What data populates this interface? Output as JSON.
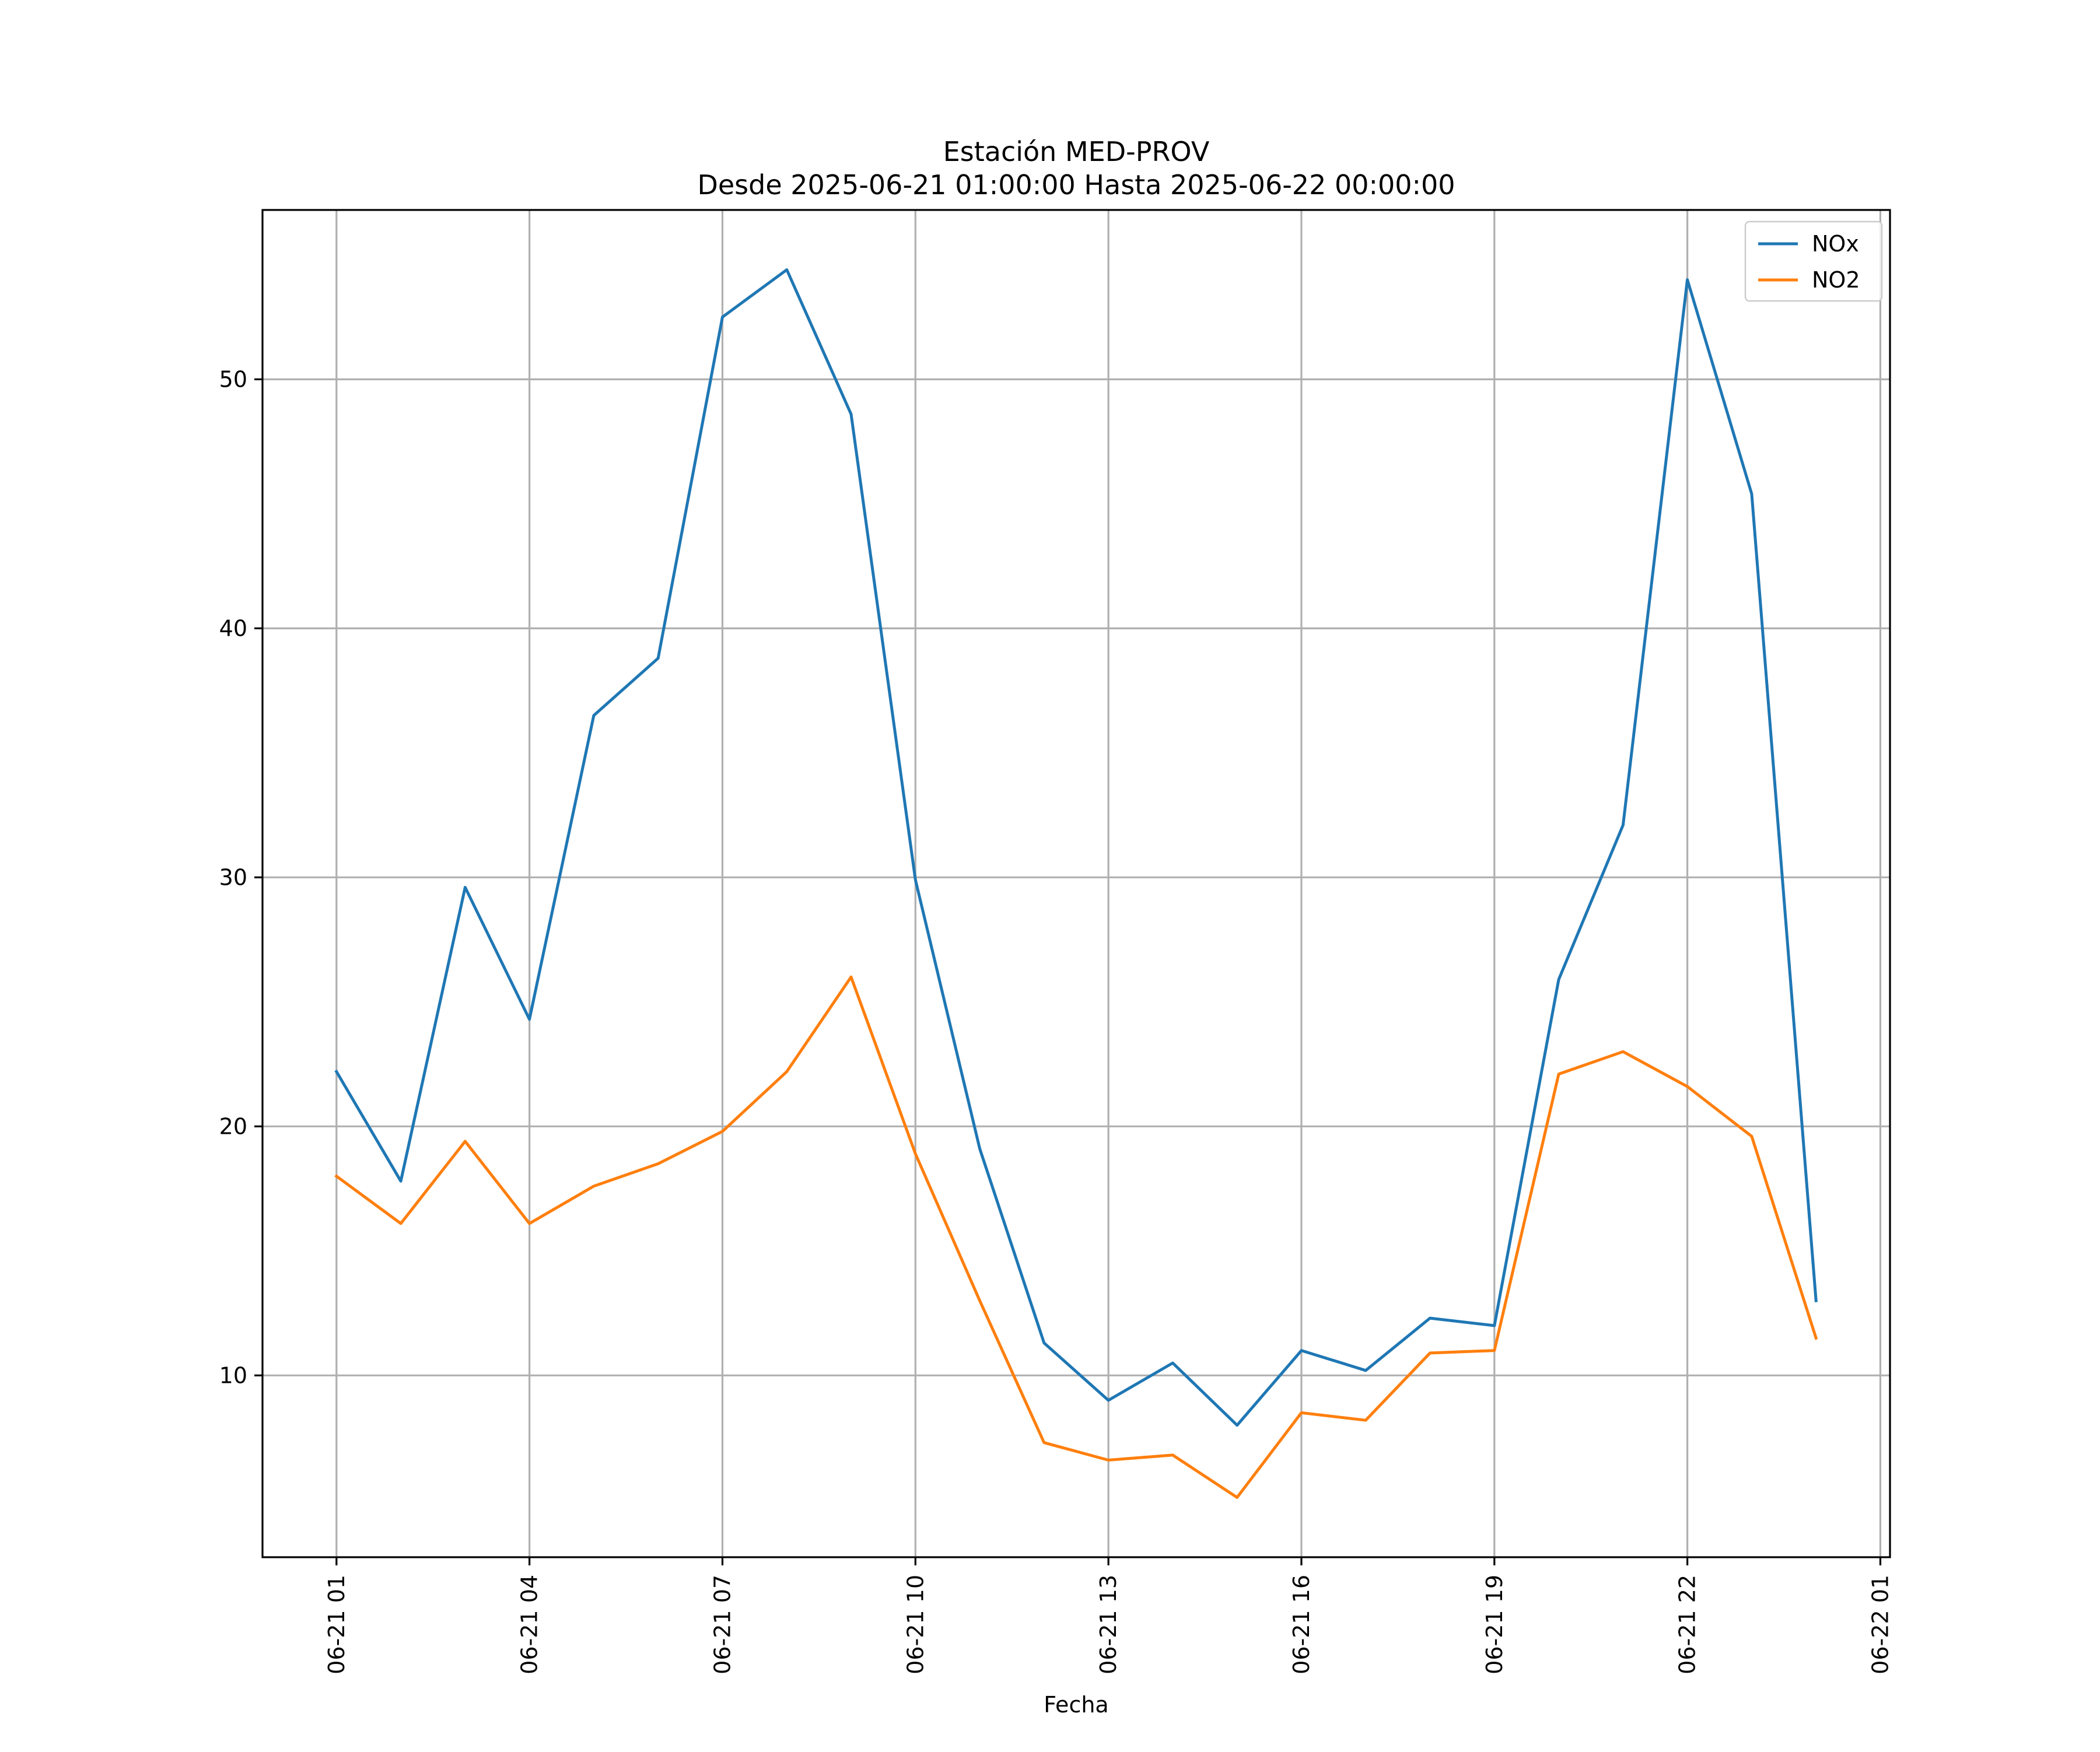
{
  "chart_data": {
    "type": "line",
    "title": "Estación MED-PROV",
    "subtitle": "Desde 2025-06-21 01:00:00 Hasta 2025-06-22 00:00:00",
    "xlabel": "Fecha",
    "ylabel": "",
    "grid": true,
    "legend_position": "top-right",
    "x": [
      "2025-06-21 01:00",
      "2025-06-21 02:00",
      "2025-06-21 03:00",
      "2025-06-21 04:00",
      "2025-06-21 05:00",
      "2025-06-21 06:00",
      "2025-06-21 07:00",
      "2025-06-21 08:00",
      "2025-06-21 09:00",
      "2025-06-21 10:00",
      "2025-06-21 11:00",
      "2025-06-21 12:00",
      "2025-06-21 13:00",
      "2025-06-21 14:00",
      "2025-06-21 15:00",
      "2025-06-21 16:00",
      "2025-06-21 17:00",
      "2025-06-21 18:00",
      "2025-06-21 19:00",
      "2025-06-21 20:00",
      "2025-06-21 21:00",
      "2025-06-21 22:00",
      "2025-06-21 23:00",
      "2025-06-22 00:00"
    ],
    "x_ticks": [
      {
        "label": "06-21 01",
        "value": "2025-06-21 01:00"
      },
      {
        "label": "06-21 04",
        "value": "2025-06-21 04:00"
      },
      {
        "label": "06-21 07",
        "value": "2025-06-21 07:00"
      },
      {
        "label": "06-21 10",
        "value": "2025-06-21 10:00"
      },
      {
        "label": "06-21 13",
        "value": "2025-06-21 13:00"
      },
      {
        "label": "06-21 16",
        "value": "2025-06-21 16:00"
      },
      {
        "label": "06-21 19",
        "value": "2025-06-21 19:00"
      },
      {
        "label": "06-21 22",
        "value": "2025-06-21 22:00"
      },
      {
        "label": "06-22 01",
        "value": "2025-06-22 01:00"
      }
    ],
    "xlim": [
      "2025-06-20 23:51",
      "2025-06-22 01:09"
    ],
    "y_ticks": [
      10,
      20,
      30,
      40,
      50
    ],
    "ylim": [
      2.7,
      56.8
    ],
    "series": [
      {
        "name": "NOx",
        "color": "#1f77b4",
        "values": [
          22.2,
          17.8,
          29.6,
          24.3,
          36.5,
          38.8,
          52.5,
          54.4,
          48.6,
          29.9,
          19.1,
          11.3,
          9.0,
          10.5,
          8.0,
          11.0,
          10.2,
          12.3,
          12.0,
          25.9,
          32.1,
          54.0,
          45.4,
          13.0
        ]
      },
      {
        "name": "NO2",
        "color": "#ff7f0e",
        "values": [
          18.0,
          16.1,
          19.4,
          16.1,
          17.6,
          18.5,
          19.8,
          22.2,
          26.0,
          18.9,
          13.0,
          7.3,
          6.6,
          6.8,
          5.1,
          8.5,
          8.2,
          10.9,
          11.0,
          22.1,
          23.0,
          21.6,
          19.6,
          11.5
        ]
      }
    ]
  }
}
